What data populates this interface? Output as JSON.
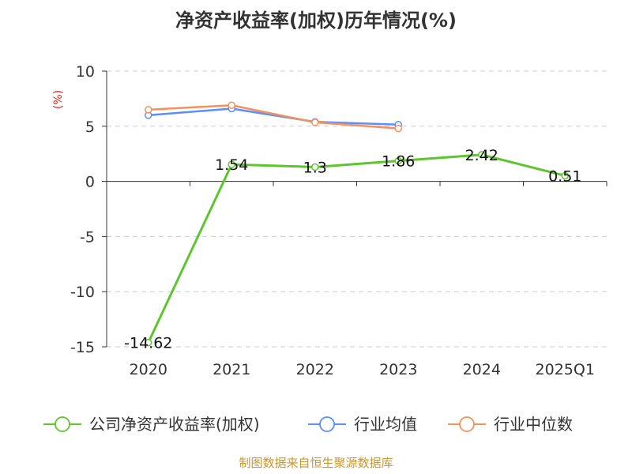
{
  "chart_data": {
    "type": "line",
    "title": "净资产收益率(加权)历年情况(%)",
    "unit_label": "(%)",
    "categories": [
      "2020",
      "2021",
      "2022",
      "2023",
      "2024",
      "2025Q1"
    ],
    "ylim": [
      -15,
      10
    ],
    "yticks": [
      "10",
      "5",
      "0",
      "-5",
      "-10",
      "-15"
    ],
    "grid": true,
    "legend_position": "bottom",
    "series": [
      {
        "name": "公司净资产收益率(加权)",
        "color": "#5ec52e",
        "values": [
          -14.62,
          1.54,
          1.3,
          1.86,
          2.42,
          0.51
        ],
        "labels": [
          "-14.62",
          "1.54",
          "1.3",
          "1.86",
          "2.42",
          "0.51"
        ]
      },
      {
        "name": "行业均值",
        "color": "#5b8ff9",
        "values": [
          6.0,
          6.6,
          5.4,
          5.15,
          null,
          null
        ]
      },
      {
        "name": "行业中位数",
        "color": "#f6905c",
        "values": [
          6.5,
          6.9,
          5.35,
          4.8,
          null,
          null
        ]
      }
    ]
  },
  "source_text": "制图数据来自恒生聚源数据库"
}
